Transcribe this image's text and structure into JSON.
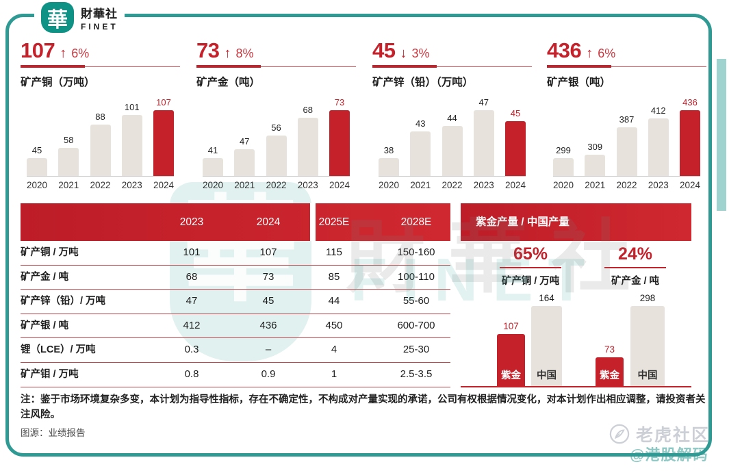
{
  "brand": {
    "logo_char": "華",
    "name": "財華社",
    "name_en": "FINET"
  },
  "colors": {
    "accent_red": "#c4212b",
    "bar_gray": "#e7e3dc",
    "frame_teal": "#2f9a93",
    "logo_teal": "#0f9286",
    "header_text": "#ffffff"
  },
  "chart_data": [
    {
      "type": "bar",
      "group": "kpi",
      "headline": "107",
      "direction": "up",
      "change": "6%",
      "title": "矿产铜（万吨）",
      "categories": [
        "2020",
        "2021",
        "2022",
        "2023",
        "2024"
      ],
      "values": [
        45,
        58,
        88,
        101,
        107
      ],
      "highlight_index": 4,
      "legend_position": "none",
      "grid": false
    },
    {
      "type": "bar",
      "group": "kpi",
      "headline": "73",
      "direction": "up",
      "change": "8%",
      "title": "矿产金（吨）",
      "categories": [
        "2020",
        "2021",
        "2022",
        "2023",
        "2024"
      ],
      "values": [
        41,
        47,
        56,
        68,
        73
      ],
      "highlight_index": 4,
      "legend_position": "none",
      "grid": false
    },
    {
      "type": "bar",
      "group": "kpi",
      "headline": "45",
      "direction": "down",
      "change": "3%",
      "title": "矿产锌（铅）（万吨）",
      "categories": [
        "2020",
        "2021",
        "2022",
        "2023",
        "2024"
      ],
      "values": [
        38,
        43,
        44,
        47,
        45
      ],
      "highlight_index": 4,
      "legend_position": "none",
      "grid": false
    },
    {
      "type": "bar",
      "group": "kpi",
      "headline": "436",
      "direction": "up",
      "change": "6%",
      "title": "矿产银（吨）",
      "categories": [
        "2020",
        "2021",
        "2022",
        "2023",
        "2024"
      ],
      "values": [
        299,
        309,
        387,
        412,
        436
      ],
      "highlight_index": 4,
      "legend_position": "none",
      "grid": false
    },
    {
      "type": "bar",
      "group": "ratio",
      "share": "65%",
      "title": "矿产铜 / 万吨",
      "categories": [
        "紫金",
        "中国"
      ],
      "values": [
        107,
        164
      ],
      "highlight_index": 0
    },
    {
      "type": "bar",
      "group": "ratio",
      "share": "24%",
      "title": "矿产金 / 吨",
      "categories": [
        "紫金",
        "中国"
      ],
      "values": [
        73,
        298
      ],
      "highlight_index": 0
    },
    {
      "type": "table",
      "group": "plan",
      "columns": [
        "2023",
        "2024",
        "2025E",
        "2028E"
      ],
      "rows": [
        {
          "label": "矿产铜 / 万吨",
          "values": [
            "101",
            "107",
            "115",
            "150-160"
          ]
        },
        {
          "label": "矿产金 / 吨",
          "values": [
            "68",
            "73",
            "85",
            "100-110"
          ]
        },
        {
          "label": "矿产锌（铅）/ 万吨",
          "values": [
            "47",
            "45",
            "44",
            "55-60"
          ]
        },
        {
          "label": "矿产银 / 吨",
          "values": [
            "412",
            "436",
            "450",
            "600-700"
          ]
        },
        {
          "label": "锂（LCE）/ 万吨",
          "values": [
            "0.3",
            "–",
            "4",
            "25-30"
          ]
        },
        {
          "label": "矿产钼 / 万吨",
          "values": [
            "0.8",
            "0.9",
            "1",
            "2.5-3.5"
          ]
        }
      ]
    }
  ],
  "ratio_panel": {
    "title": "紫金产量 / 中国产量"
  },
  "notes": {
    "disclaimer": "注：鉴于市场环境复杂多变，本计划为指导性指标，存在不确定性，不构成对产量实现的承诺，公司有权根据情况变化，对本计划作出相应调整，请投资者关注风险。",
    "source": "图源：业绩报告"
  },
  "watermarks": {
    "shield_char": "華",
    "caihua": "財華社",
    "finet": "FINET",
    "community": "老虎社区",
    "handle": "@港股解码"
  }
}
